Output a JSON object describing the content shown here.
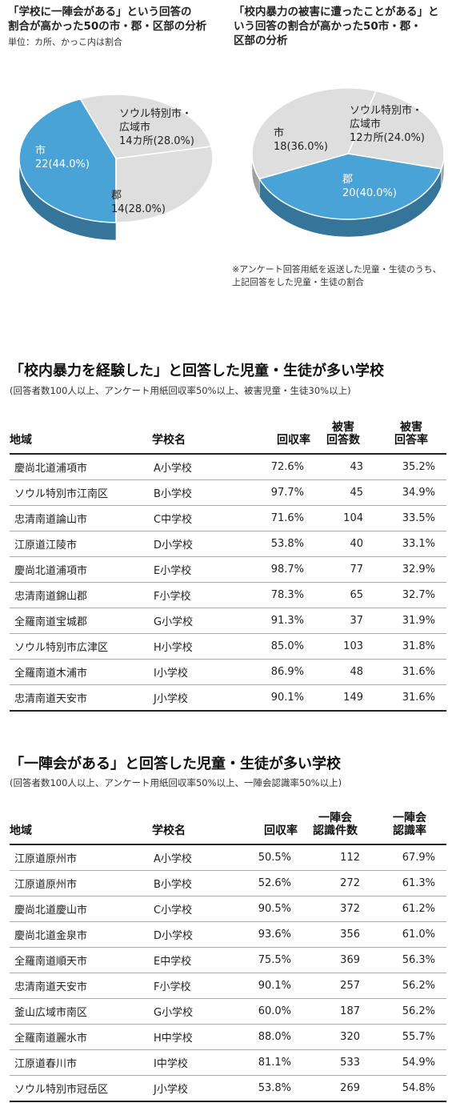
{
  "chart_data": [
    {
      "type": "pie",
      "title": "「学校に一陣会がある」という回答の\n割合が高かった50の市・郡・区部の分析",
      "subtitle": "単位：カ所、かっこ内は割合",
      "slices": [
        {
          "label_lines": [
            "市",
            "22(44.0%)"
          ],
          "value": 22,
          "percent": 44.0,
          "color": "#4aa3d6"
        },
        {
          "label_lines": [
            "ソウル特別市・",
            "広域市",
            "14カ所(28.0%)"
          ],
          "value": 14,
          "percent": 28.0,
          "color": "#dedede"
        },
        {
          "label_lines": [
            "郡",
            "14(28.0%)"
          ],
          "value": 14,
          "percent": 28.0,
          "color": "#dedede"
        }
      ]
    },
    {
      "type": "pie",
      "title": "「校内暴力の被害に遭ったことがある」と\nいう回答の割合が高かった50市・郡・\n区部の分析",
      "note": "※アンケート回答用紙を返送した児童・生徒のうち、\n上記回答をした児童・生徒の割合",
      "slices": [
        {
          "label_lines": [
            "ソウル特別市・",
            "広域市",
            "12カ所(24.0%)"
          ],
          "value": 12,
          "percent": 24.0,
          "color": "#dedede"
        },
        {
          "label_lines": [
            "郡",
            "20(40.0%)"
          ],
          "value": 20,
          "percent": 40.0,
          "color": "#4aa3d6"
        },
        {
          "label_lines": [
            "市",
            "18(36.0%)"
          ],
          "value": 18,
          "percent": 36.0,
          "color": "#dedede"
        }
      ]
    },
    {
      "type": "table",
      "title": "「校内暴力を経験した」と回答した児童・生徒が多い学校",
      "subtitle": "(回答者数100人以上、アンケート用紙回収率50%以上、被害児童・生徒30%以上)",
      "columns": [
        "地域",
        "学校名",
        "回収率",
        "被害\n回答数",
        "被害\n回答率"
      ],
      "rows": [
        [
          "慶尚北道浦項市",
          "A小学校",
          "72.6%",
          "43",
          "35.2%"
        ],
        [
          "ソウル特別市江南区",
          "B小学校",
          "97.7%",
          "45",
          "34.9%"
        ],
        [
          "忠清南道論山市",
          "C中学校",
          "71.6%",
          "104",
          "33.5%"
        ],
        [
          "江原道江陵市",
          "D小学校",
          "53.8%",
          "40",
          "33.1%"
        ],
        [
          "慶尚北道浦項市",
          "E小学校",
          "98.7%",
          "77",
          "32.9%"
        ],
        [
          "忠清南道錦山郡",
          "F小学校",
          "78.3%",
          "65",
          "32.7%"
        ],
        [
          "全羅南道宝城郡",
          "G小学校",
          "91.3%",
          "37",
          "31.9%"
        ],
        [
          "ソウル特別市広津区",
          "H小学校",
          "85.0%",
          "103",
          "31.8%"
        ],
        [
          "全羅南道木浦市",
          "I小学校",
          "86.9%",
          "48",
          "31.6%"
        ],
        [
          "忠清南道天安市",
          "J小学校",
          "90.1%",
          "149",
          "31.6%"
        ]
      ]
    },
    {
      "type": "table",
      "title": "「一陣会がある」と回答した児童・生徒が多い学校",
      "subtitle": "(回答者数100人以上、アンケート用紙回収率50%以上、一陣会認識率50%以上)",
      "columns": [
        "地域",
        "学校名",
        "回収率",
        "一陣会\n認識件数",
        "一陣会\n認識率"
      ],
      "rows": [
        [
          "江原道原州市",
          "A小学校",
          "50.5%",
          "112",
          "67.9%"
        ],
        [
          "江原道原州市",
          "B小学校",
          "52.6%",
          "272",
          "61.3%"
        ],
        [
          "慶尚北道慶山市",
          "C小学校",
          "90.5%",
          "372",
          "61.2%"
        ],
        [
          "慶尚北道金泉市",
          "D小学校",
          "93.6%",
          "356",
          "61.0%"
        ],
        [
          "全羅南道順天市",
          "E中学校",
          "75.5%",
          "369",
          "56.3%"
        ],
        [
          "忠清南道天安市",
          "F小学校",
          "90.1%",
          "257",
          "56.2%"
        ],
        [
          "釜山広域市南区",
          "G小学校",
          "60.0%",
          "187",
          "56.2%"
        ],
        [
          "全羅南道麗水市",
          "H中学校",
          "88.0%",
          "320",
          "55.7%"
        ],
        [
          "江原道春川市",
          "I中学校",
          "81.1%",
          "533",
          "54.9%"
        ],
        [
          "ソウル特別市冠岳区",
          "J小学校",
          "53.8%",
          "269",
          "54.8%"
        ]
      ]
    }
  ]
}
